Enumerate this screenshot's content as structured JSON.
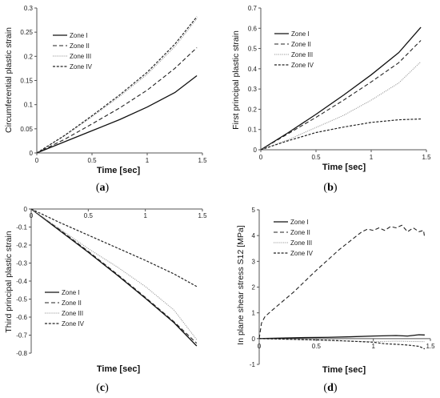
{
  "styles": {
    "Zone I": {
      "color": "#111111",
      "dash": "",
      "width": 1.3
    },
    "Zone II": {
      "color": "#222222",
      "dash": "5,3",
      "width": 1.1
    },
    "Zone III": {
      "color": "#9a9a9a",
      "dash": "1.2,1.2",
      "width": 1.0
    },
    "Zone IV": {
      "color": "#222222",
      "dash": "3,1.8",
      "width": 1.2
    }
  },
  "chart_data": [
    {
      "type": "line",
      "panel": "(a)",
      "panel_letter": "a",
      "xlabel": "Time [sec]",
      "ylabel": "Circumferential plastic strain",
      "xlim": [
        0,
        1.5
      ],
      "ylim": [
        0,
        0.3
      ],
      "xticks": [
        0,
        0.5,
        1,
        1.5
      ],
      "xtick_labels": [
        "0",
        "0.5",
        "1",
        "1.5"
      ],
      "yticks": [
        0,
        0.05,
        0.1,
        0.15,
        0.2,
        0.25,
        0.3
      ],
      "ytick_labels": [
        "0",
        "0.05",
        "0.1",
        "0.15",
        "0.2",
        "0.25",
        "0.3"
      ],
      "legend_position": "top-left",
      "series": [
        {
          "name": "Zone I",
          "x": [
            0,
            0.25,
            0.5,
            0.75,
            1.0,
            1.25,
            1.45
          ],
          "y": [
            0,
            0.023,
            0.046,
            0.069,
            0.095,
            0.125,
            0.16
          ]
        },
        {
          "name": "Zone II",
          "x": [
            0,
            0.25,
            0.5,
            0.75,
            1.0,
            1.25,
            1.45
          ],
          "y": [
            0,
            0.028,
            0.06,
            0.093,
            0.13,
            0.175,
            0.218
          ]
        },
        {
          "name": "Zone III",
          "x": [
            0,
            0.25,
            0.5,
            0.75,
            1.0,
            1.25,
            1.45
          ],
          "y": [
            0,
            0.035,
            0.075,
            0.117,
            0.163,
            0.22,
            0.278
          ]
        },
        {
          "name": "Zone IV",
          "x": [
            0,
            0.25,
            0.5,
            0.75,
            1.0,
            1.25,
            1.45
          ],
          "y": [
            0,
            0.036,
            0.077,
            0.12,
            0.167,
            0.225,
            0.282
          ]
        }
      ]
    },
    {
      "type": "line",
      "panel": "(b)",
      "panel_letter": "b",
      "xlabel": "Time [sec]",
      "ylabel": "First principal plastic strain",
      "xlim": [
        0,
        1.5
      ],
      "ylim": [
        0,
        0.7
      ],
      "xticks": [
        0,
        0.5,
        1,
        1.5
      ],
      "xtick_labels": [
        "0",
        "0.5",
        "1",
        "1.5"
      ],
      "yticks": [
        0,
        0.1,
        0.2,
        0.3,
        0.4,
        0.5,
        0.6,
        0.7
      ],
      "ytick_labels": [
        "0",
        "0.1",
        "0.2",
        "0.3",
        "0.4",
        "0.5",
        "0.6",
        "0.7"
      ],
      "legend_position": "top-left",
      "series": [
        {
          "name": "Zone I",
          "x": [
            0,
            0.25,
            0.5,
            0.75,
            1.0,
            1.25,
            1.45
          ],
          "y": [
            0,
            0.085,
            0.175,
            0.27,
            0.37,
            0.48,
            0.605
          ]
        },
        {
          "name": "Zone II",
          "x": [
            0,
            0.25,
            0.5,
            0.75,
            1.0,
            1.25,
            1.45
          ],
          "y": [
            0,
            0.08,
            0.16,
            0.245,
            0.335,
            0.43,
            0.54
          ]
        },
        {
          "name": "Zone III",
          "x": [
            0,
            0.25,
            0.5,
            0.75,
            1.0,
            1.25,
            1.45
          ],
          "y": [
            0,
            0.05,
            0.11,
            0.17,
            0.245,
            0.33,
            0.435
          ]
        },
        {
          "name": "Zone IV",
          "x": [
            0,
            0.25,
            0.5,
            0.75,
            1.0,
            1.25,
            1.45
          ],
          "y": [
            0,
            0.045,
            0.085,
            0.112,
            0.135,
            0.148,
            0.152
          ]
        }
      ]
    },
    {
      "type": "line",
      "panel": "(c)",
      "panel_letter": "c",
      "xlabel": "Time [sec]",
      "ylabel": "Third principal plastic strain",
      "xlim": [
        0,
        1.5
      ],
      "ylim": [
        -0.8,
        0
      ],
      "xticks": [
        0,
        0.5,
        1,
        1.5
      ],
      "xtick_labels": [
        "0",
        "0.5",
        "1",
        "1.5"
      ],
      "yticks": [
        0,
        -0.1,
        -0.2,
        -0.3,
        -0.4,
        -0.5,
        -0.6,
        -0.7,
        -0.8
      ],
      "ytick_labels": [
        "0",
        "-0.1",
        "-0.2",
        "-0.3",
        "-0.4",
        "-0.5",
        "-0.6",
        "-0.7",
        "-0.8"
      ],
      "legend_position": "bottom-left",
      "series": [
        {
          "name": "Zone I",
          "x": [
            0,
            0.25,
            0.5,
            0.75,
            1.0,
            1.25,
            1.45
          ],
          "y": [
            0,
            -0.12,
            -0.24,
            -0.365,
            -0.495,
            -0.63,
            -0.76
          ]
        },
        {
          "name": "Zone II",
          "x": [
            0,
            0.25,
            0.5,
            0.75,
            1.0,
            1.25,
            1.45
          ],
          "y": [
            0,
            -0.115,
            -0.235,
            -0.36,
            -0.49,
            -0.625,
            -0.745
          ]
        },
        {
          "name": "Zone III",
          "x": [
            0,
            0.25,
            0.5,
            0.75,
            1.0,
            1.25,
            1.45
          ],
          "y": [
            0,
            -0.11,
            -0.22,
            -0.32,
            -0.43,
            -0.56,
            -0.725
          ]
        },
        {
          "name": "Zone IV",
          "x": [
            0,
            0.25,
            0.5,
            0.75,
            1.0,
            1.25,
            1.45
          ],
          "y": [
            0,
            -0.075,
            -0.145,
            -0.215,
            -0.285,
            -0.36,
            -0.43
          ]
        }
      ]
    },
    {
      "type": "line",
      "panel": "(d)",
      "panel_letter": "d",
      "xlabel": "Time [sec]",
      "ylabel": "In plane shear stress S12 [MPa]",
      "xlim": [
        0,
        1.5
      ],
      "ylim": [
        -1,
        5
      ],
      "xticks": [
        0,
        0.5,
        1,
        1.5
      ],
      "xtick_labels": [
        "0",
        "0.5",
        "1",
        "1.5"
      ],
      "yticks": [
        -1,
        0,
        1,
        2,
        3,
        4,
        5
      ],
      "ytick_labels": [
        "-1",
        "0",
        "1",
        "2",
        "3",
        "4",
        "5"
      ],
      "legend_position": "top-left",
      "series": [
        {
          "name": "Zone I",
          "x": [
            0,
            0.2,
            0.4,
            0.6,
            0.8,
            1.0,
            1.2,
            1.3,
            1.4,
            1.45
          ],
          "y": [
            0,
            0.02,
            0.04,
            0.05,
            0.07,
            0.1,
            0.12,
            0.1,
            0.15,
            0.14
          ]
        },
        {
          "name": "Zone II",
          "x": [
            0,
            0.02,
            0.05,
            0.1,
            0.3,
            0.5,
            0.7,
            0.9,
            0.95,
            1.0,
            1.05,
            1.1,
            1.15,
            1.2,
            1.25,
            1.3,
            1.35,
            1.4,
            1.44,
            1.45
          ],
          "y": [
            0,
            0.6,
            0.85,
            1.05,
            1.8,
            2.65,
            3.45,
            4.15,
            4.25,
            4.2,
            4.3,
            4.2,
            4.35,
            4.3,
            4.4,
            4.15,
            4.3,
            4.15,
            4.2,
            3.9
          ]
        },
        {
          "name": "Zone III",
          "x": [
            0,
            0.2,
            0.4,
            0.6,
            0.8,
            1.0,
            1.2,
            1.45
          ],
          "y": [
            0,
            -0.02,
            -0.05,
            -0.08,
            -0.1,
            -0.12,
            -0.1,
            -0.12
          ]
        },
        {
          "name": "Zone IV",
          "x": [
            0,
            0.2,
            0.4,
            0.6,
            0.8,
            1.0,
            1.1,
            1.2,
            1.3,
            1.4,
            1.45
          ],
          "y": [
            0,
            -0.02,
            -0.04,
            -0.06,
            -0.1,
            -0.14,
            -0.2,
            -0.22,
            -0.25,
            -0.3,
            -0.4
          ]
        }
      ]
    }
  ]
}
